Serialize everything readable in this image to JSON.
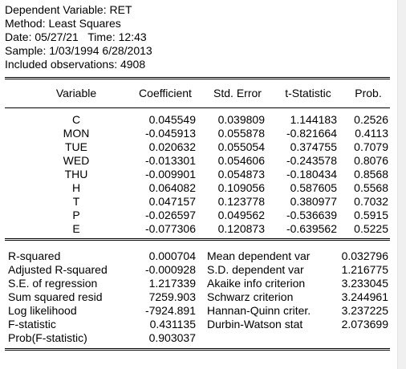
{
  "header": {
    "dependent_variable": "Dependent Variable: RET",
    "method": "Method: Least Squares",
    "date": "Date: 05/27/21   Time: 12:43",
    "sample": "Sample: 1/03/1994 6/28/2013",
    "observations": "Included observations: 4908"
  },
  "columns": {
    "variable": "Variable",
    "coefficient": "Coefficient",
    "std_error": "Std. Error",
    "t_statistic": "t-Statistic",
    "prob": "Prob."
  },
  "rows": [
    {
      "variable": "C",
      "coefficient": "0.045549",
      "std_error": "0.039809",
      "t_statistic": "1.144183",
      "prob": "0.2526"
    },
    {
      "variable": "MON",
      "coefficient": "-0.045913",
      "std_error": "0.055878",
      "t_statistic": "-0.821664",
      "prob": "0.4113"
    },
    {
      "variable": "TUE",
      "coefficient": "0.020632",
      "std_error": "0.055054",
      "t_statistic": "0.374755",
      "prob": "0.7079"
    },
    {
      "variable": "WED",
      "coefficient": "-0.013301",
      "std_error": "0.054606",
      "t_statistic": "-0.243578",
      "prob": "0.8076"
    },
    {
      "variable": "THU",
      "coefficient": "-0.009901",
      "std_error": "0.054873",
      "t_statistic": "-0.180434",
      "prob": "0.8568"
    },
    {
      "variable": "H",
      "coefficient": "0.064082",
      "std_error": "0.109056",
      "t_statistic": "0.587605",
      "prob": "0.5568"
    },
    {
      "variable": "T",
      "coefficient": "0.047157",
      "std_error": "0.123778",
      "t_statistic": "0.380977",
      "prob": "0.7032"
    },
    {
      "variable": "P",
      "coefficient": "-0.026597",
      "std_error": "0.049562",
      "t_statistic": "-0.536639",
      "prob": "0.5915"
    },
    {
      "variable": "E",
      "coefficient": "-0.077306",
      "std_error": "0.120873",
      "t_statistic": "-0.639562",
      "prob": "0.5225"
    }
  ],
  "stats_left": [
    {
      "label": "R-squared",
      "value": "0.000704"
    },
    {
      "label": "Adjusted R-squared",
      "value": "-0.000928"
    },
    {
      "label": "S.E. of regression",
      "value": "1.217339"
    },
    {
      "label": "Sum squared resid",
      "value": "7259.903"
    },
    {
      "label": "Log likelihood",
      "value": "-7924.891"
    },
    {
      "label": "F-statistic",
      "value": "0.431135"
    },
    {
      "label": "Prob(F-statistic)",
      "value": "0.903037"
    }
  ],
  "stats_right": [
    {
      "label": "Mean dependent var",
      "value": "0.032796"
    },
    {
      "label": "S.D. dependent var",
      "value": "1.216775"
    },
    {
      "label": "Akaike info criterion",
      "value": "3.233045"
    },
    {
      "label": "Schwarz criterion",
      "value": "3.244961"
    },
    {
      "label": "Hannan-Quinn criter.",
      "value": "3.237225"
    },
    {
      "label": "Durbin-Watson stat",
      "value": "2.073699"
    }
  ]
}
